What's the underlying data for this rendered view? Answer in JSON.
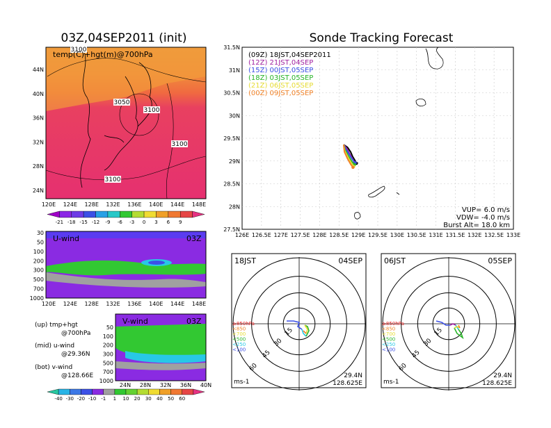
{
  "left_title": "03Z,04SEP2011 (init)",
  "right_title": "Sonde Tracking Forecast",
  "temp_map": {
    "label": "temp(C)+hgt(m)@700hPa",
    "y_ticks": [
      "44N",
      "40N",
      "36N",
      "32N",
      "28N",
      "24N"
    ],
    "x_ticks": [
      "120E",
      "124E",
      "128E",
      "132E",
      "136E",
      "140E",
      "144E",
      "148E"
    ],
    "contour_labels": [
      "3100",
      "3050",
      "3100",
      "3100",
      "3100"
    ],
    "colorbar": [
      "-21",
      "-18",
      "-15",
      "-12",
      "-9",
      "-6",
      "-3",
      "0",
      "3",
      "6",
      "9"
    ]
  },
  "uwind": {
    "label": "U-wind",
    "time": "03Z",
    "y_ticks": [
      "30",
      "50",
      "100",
      "200",
      "300",
      "500",
      "700",
      "1000"
    ],
    "x_ticks": [
      "120E",
      "124E",
      "128E",
      "132E",
      "136E",
      "140E",
      "144E",
      "148E"
    ]
  },
  "vwind": {
    "label": "V-wind",
    "time": "03Z",
    "y_ticks": [
      "50",
      "100",
      "200",
      "300",
      "500",
      "700",
      "1000"
    ],
    "x_ticks": [
      "24N",
      "28N",
      "32N",
      "36N",
      "40N"
    ],
    "colorbar": [
      "-40",
      "-30",
      "-20",
      "-10",
      "-1",
      "1",
      "10",
      "20",
      "30",
      "40",
      "50",
      "60"
    ]
  },
  "notes": [
    {
      "a": "(up) tmp+hgt",
      "b": "@700hPa"
    },
    {
      "a": "(mid) u-wind",
      "b": "@29.36N"
    },
    {
      "a": "(bot) v-wind",
      "b": "@128.66E"
    }
  ],
  "track_panel": {
    "legend": [
      {
        "text": "(09Z)  18JST,04SEP2011",
        "color": "#000000"
      },
      {
        "text": "(12Z)  21JST,04SEP",
        "color": "#a020a0"
      },
      {
        "text": "(15Z)  00JST,05SEP",
        "color": "#3c50e6"
      },
      {
        "text": "(18Z)  03JST,05SEP",
        "color": "#28b428"
      },
      {
        "text": "(21Z)  06JST,05SEP",
        "color": "#e6dc32"
      },
      {
        "text": "(00Z)  09JST,05SEP",
        "color": "#f08228"
      }
    ],
    "info": [
      "VUP=  6.0  m/s",
      "VDW= -4.0  m/s",
      "Burst Alt=  18.0  km"
    ]
  },
  "polar_left": {
    "time": "18JST",
    "date": "04SEP",
    "lat": "29.4N",
    "lon": "128.625E"
  },
  "polar_right": {
    "time": "06JST",
    "date": "05SEP",
    "lat": "29.4N",
    "lon": "128.625E"
  },
  "polar_common": {
    "rings": [
      "15",
      "30",
      "45",
      "60"
    ],
    "units": "ms-1",
    "levels": [
      {
        "text": "≥850hPa",
        "color": "#e61e1e"
      },
      {
        "text": "<850",
        "color": "#f08228"
      },
      {
        "text": "<700",
        "color": "#e6dc32"
      },
      {
        "text": "<500",
        "color": "#28b428"
      },
      {
        "text": "<250",
        "color": "#28c8e6"
      },
      {
        "text": "<100",
        "color": "#3c50e6"
      }
    ]
  },
  "chart_data": {
    "type": "scatter",
    "title": "Sonde Tracking Forecast",
    "x_ticks": [
      "126E",
      "126.5E",
      "127E",
      "127.5E",
      "128E",
      "128.5E",
      "129E",
      "129.5E",
      "130E",
      "130.5E",
      "131E",
      "131.5E",
      "132E",
      "132.5E",
      "133E"
    ],
    "y_ticks": [
      "31.5N",
      "31N",
      "30.5N",
      "30N",
      "29.5N",
      "29N",
      "28.5N",
      "28N",
      "27.5N"
    ],
    "xlim": [
      126,
      133
    ],
    "ylim": [
      27.5,
      31.5
    ],
    "grid": true,
    "series": [
      {
        "name": "(09Z)  18JST,04SEP2011",
        "color": "#000000",
        "x": [
          128.62,
          128.72,
          128.8,
          128.85,
          128.92,
          128.95
        ],
        "y": [
          29.36,
          29.3,
          29.2,
          29.1,
          29.0,
          28.95
        ]
      },
      {
        "name": "(12Z)  21JST,04SEP",
        "color": "#a020a0",
        "x": [
          128.62,
          128.7,
          128.78,
          128.85,
          128.9
        ],
        "y": [
          29.36,
          29.28,
          29.15,
          29.05,
          28.97
        ]
      },
      {
        "name": "(15Z)  00JST,05SEP",
        "color": "#3c50e6",
        "x": [
          128.62,
          128.68,
          128.78,
          128.86,
          128.92
        ],
        "y": [
          29.36,
          29.26,
          29.12,
          29.02,
          28.96
        ]
      },
      {
        "name": "(18Z)  03JST,05SEP",
        "color": "#28b428",
        "x": [
          128.62,
          128.66,
          128.75,
          128.84,
          128.9
        ],
        "y": [
          29.36,
          29.24,
          29.1,
          28.98,
          28.92
        ]
      },
      {
        "name": "(21Z)  06JST,05SEP",
        "color": "#e6dc32",
        "x": [
          128.62,
          128.65,
          128.74,
          128.82,
          128.88
        ],
        "y": [
          29.36,
          29.22,
          29.07,
          28.95,
          28.88
        ]
      },
      {
        "name": "(00Z)  09JST,05SEP",
        "color": "#f08228",
        "x": [
          128.62,
          128.64,
          128.72,
          128.8,
          128.86
        ],
        "y": [
          29.36,
          29.2,
          29.05,
          28.93,
          28.86
        ]
      }
    ]
  }
}
